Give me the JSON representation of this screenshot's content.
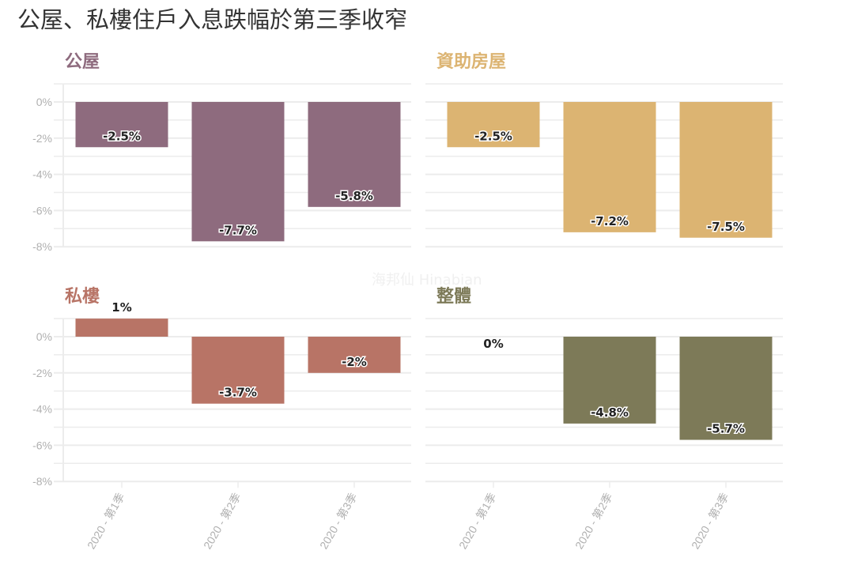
{
  "title": "公屋、私樓住戶入息跌幅於第三季收窄",
  "watermark": "海邦仙 Hinabian",
  "chart_data": [
    {
      "type": "bar",
      "title": "公屋",
      "color": "#8e6b7e",
      "categories": [
        "2020 - 第1季",
        "2020 - 第2季",
        "2020 - 第3季"
      ],
      "values": [
        -2.5,
        -7.7,
        -5.8
      ],
      "labels": [
        "-2.5%",
        "-7.7%",
        "-5.8%"
      ],
      "ylim": [
        -8,
        1
      ],
      "yticks": [
        "0%",
        "-2%",
        "-4%",
        "-6%",
        "-8%"
      ],
      "grid": true
    },
    {
      "type": "bar",
      "title": "資助房屋",
      "color": "#dcb472",
      "categories": [
        "2020 - 第1季",
        "2020 - 第2季",
        "2020 - 第3季"
      ],
      "values": [
        -2.5,
        -7.2,
        -7.5
      ],
      "labels": [
        "-2.5%",
        "-7.2%",
        "-7.5%"
      ],
      "ylim": [
        -8,
        1
      ],
      "grid": true
    },
    {
      "type": "bar",
      "title": "私樓",
      "color": "#b87466",
      "categories": [
        "2020 - 第1季",
        "2020 - 第2季",
        "2020 - 第3季"
      ],
      "values": [
        1,
        -3.7,
        -2
      ],
      "labels": [
        "1%",
        "-3.7%",
        "-2%"
      ],
      "ylim": [
        -8,
        1
      ],
      "yticks": [
        "0%",
        "-2%",
        "-4%",
        "-6%",
        "-8%"
      ],
      "grid": true
    },
    {
      "type": "bar",
      "title": "整體",
      "color": "#7d7a58",
      "categories": [
        "2020 - 第1季",
        "2020 - 第2季",
        "2020 - 第3季"
      ],
      "values": [
        0,
        -4.8,
        -5.7
      ],
      "labels": [
        "0%",
        "-4.8%",
        "-5.7%"
      ],
      "ylim": [
        -8,
        1
      ],
      "grid": true
    }
  ]
}
